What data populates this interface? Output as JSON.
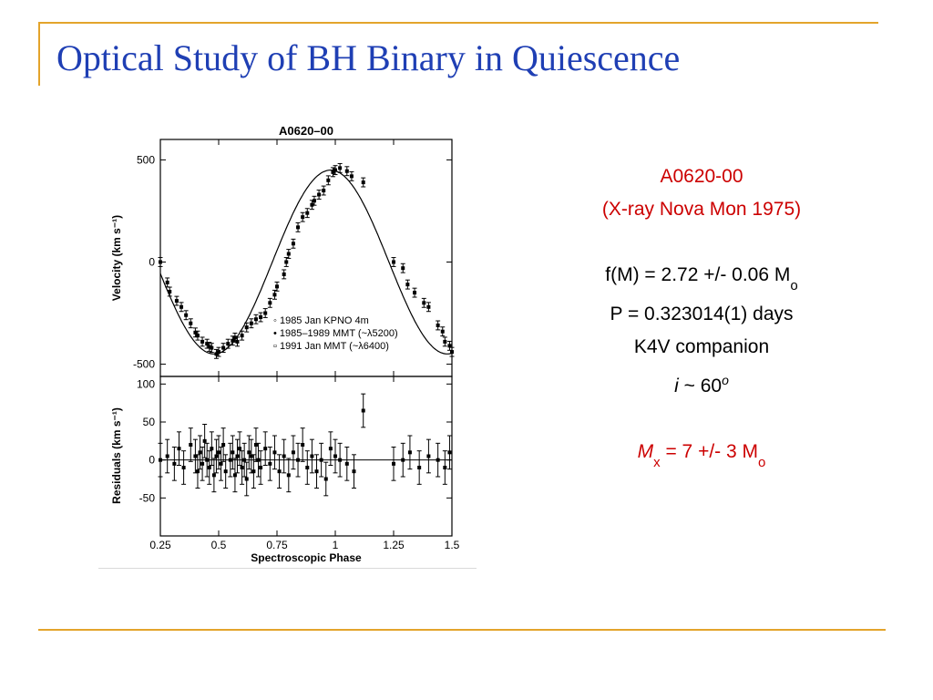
{
  "slide": {
    "title": "Optical Study of BH Binary in Quiescence"
  },
  "facts": {
    "name": "A0620-00",
    "alias": "(X-ray Nova Mon 1975)",
    "mass_function_prefix": "f(M) = 2.72 +/- 0.06 M",
    "mass_function_sub": "o",
    "period": "P = 0.323014(1) days",
    "companion": "K4V companion",
    "inclination_symbol": "i",
    "inclination_rest": " ~ 60",
    "inclination_sup": "o",
    "mass_symbol": "M",
    "mass_symbol_sub": "x",
    "mass_rest": " = 7 +/- 3 M",
    "mass_rest_sub": "o"
  },
  "colors": {
    "accent_rule": "#e3a42b",
    "title": "#1f3fb4",
    "highlight": "#cc0000"
  },
  "chart_data": {
    "type": "scatter",
    "title": "A0620–00",
    "xlabel": "Spectroscopic Phase",
    "xlim": [
      0.25,
      1.5
    ],
    "x_ticks": [
      "0.25",
      "0.5",
      "0.75",
      "1",
      "1.25",
      "1.5"
    ],
    "x_tick_values": [
      0.25,
      0.5,
      0.75,
      1,
      1.25,
      1.5
    ],
    "panels": [
      {
        "id": "velocity",
        "ylabel": "Velocity (km s⁻¹)",
        "ylim": [
          -560,
          600
        ],
        "y_ticks": [
          "500",
          "0",
          "-500"
        ],
        "y_tick_values": [
          500,
          0,
          -500
        ],
        "model": {
          "gamma": 0,
          "K": 450,
          "max_phase": 0.98
        },
        "legend": {
          "placement": "bottom-right",
          "entries": [
            "◦ 1985 Jan KPNO 4m",
            "• 1985–1989 MMT (~λ5200)",
            "▫ 1991 Jan MMT (~λ6400)"
          ]
        },
        "series": [
          {
            "x": [
              0.25,
              0.28,
              0.29,
              0.32,
              0.34,
              0.36,
              0.38,
              0.4,
              0.41,
              0.43,
              0.45,
              0.46,
              0.47,
              0.49,
              0.5,
              0.52,
              0.54,
              0.56,
              0.57,
              0.58,
              0.6,
              0.62,
              0.64,
              0.66,
              0.68,
              0.7,
              0.72,
              0.74,
              0.75,
              0.78,
              0.79,
              0.8,
              0.82,
              0.84,
              0.86,
              0.88,
              0.9,
              0.91,
              0.93,
              0.95,
              0.97,
              0.99,
              1.0,
              1.02,
              1.05,
              1.07,
              1.12,
              1.25,
              1.29,
              1.31,
              1.34,
              1.38,
              1.4,
              1.44,
              1.46,
              1.47,
              1.49,
              1.5
            ],
            "y": [
              0,
              -100,
              -145,
              -190,
              -220,
              -260,
              -300,
              -345,
              -360,
              -390,
              -400,
              -415,
              -420,
              -450,
              -440,
              -420,
              -400,
              -385,
              -370,
              -390,
              -360,
              -320,
              -300,
              -280,
              -270,
              -250,
              -200,
              -160,
              -120,
              -60,
              0,
              40,
              90,
              170,
              220,
              240,
              280,
              300,
              330,
              350,
              400,
              440,
              450,
              460,
              445,
              420,
              390,
              0,
              -30,
              -110,
              -150,
              -200,
              -220,
              -310,
              -340,
              -390,
              -410,
              -440
            ]
          }
        ]
      },
      {
        "id": "residuals",
        "ylabel": "Residuals (km s⁻¹)",
        "ylim": [
          -100,
          110
        ],
        "y_ticks": [
          "100",
          "50",
          "0",
          "-50"
        ],
        "y_tick_values": [
          100,
          50,
          0,
          -50
        ],
        "series": [
          {
            "x": [
              0.25,
              0.28,
              0.31,
              0.33,
              0.35,
              0.38,
              0.4,
              0.41,
              0.42,
              0.43,
              0.44,
              0.45,
              0.46,
              0.47,
              0.48,
              0.49,
              0.5,
              0.51,
              0.52,
              0.53,
              0.55,
              0.56,
              0.57,
              0.58,
              0.59,
              0.6,
              0.61,
              0.62,
              0.63,
              0.64,
              0.65,
              0.66,
              0.67,
              0.68,
              0.7,
              0.72,
              0.74,
              0.76,
              0.78,
              0.8,
              0.82,
              0.84,
              0.86,
              0.88,
              0.9,
              0.92,
              0.94,
              0.96,
              0.98,
              1.0,
              1.02,
              1.05,
              1.08,
              1.12,
              1.25,
              1.29,
              1.32,
              1.36,
              1.4,
              1.44,
              1.47,
              1.49
            ],
            "y": [
              0,
              5,
              -5,
              15,
              -10,
              20,
              5,
              -15,
              10,
              -5,
              25,
              0,
              -10,
              15,
              -20,
              5,
              10,
              -5,
              20,
              -15,
              0,
              10,
              -20,
              5,
              15,
              -10,
              0,
              -25,
              10,
              5,
              -15,
              20,
              0,
              -10,
              15,
              -5,
              10,
              -15,
              5,
              -20,
              10,
              0,
              20,
              -10,
              5,
              -15,
              0,
              -25,
              15,
              5,
              0,
              -5,
              -15,
              65,
              -5,
              0,
              10,
              -10,
              5,
              0,
              -10,
              10
            ]
          }
        ]
      }
    ]
  }
}
